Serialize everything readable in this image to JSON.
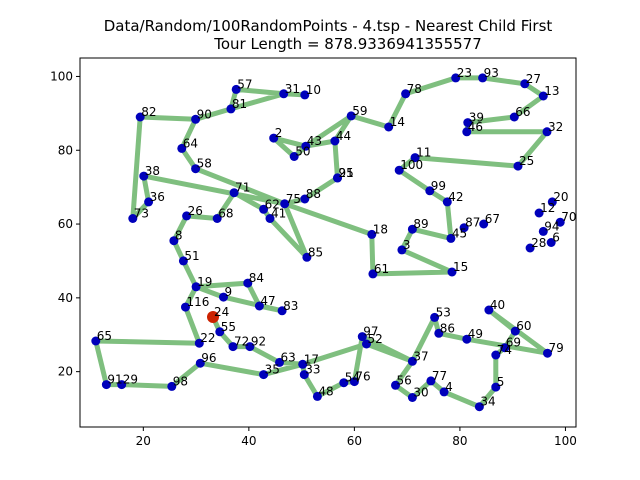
{
  "chart_data": {
    "type": "scatter",
    "title_line1": "Data/Random/100RandomPoints - 4.tsp - Nearest Child First",
    "title_line2": "Tour Length = 878.9336941355577",
    "xlim": [
      8,
      102
    ],
    "ylim": [
      5,
      105
    ],
    "xticks": [
      20,
      40,
      60,
      80,
      100
    ],
    "yticks": [
      20,
      40,
      60,
      80,
      100
    ],
    "grid": false,
    "colors": {
      "route": "#7fbf7f",
      "point": "#0000bb",
      "start": "#cc2200"
    },
    "start_point": {
      "x": 33.2,
      "y": 34.8
    },
    "points": [
      {
        "id": "57",
        "x": 37.6,
        "y": 96.5
      },
      {
        "id": "31",
        "x": 46.6,
        "y": 95.3
      },
      {
        "id": "10",
        "x": 50.6,
        "y": 95.0
      },
      {
        "id": "81",
        "x": 36.6,
        "y": 91.2
      },
      {
        "id": "90",
        "x": 29.9,
        "y": 88.4
      },
      {
        "id": "82",
        "x": 19.4,
        "y": 89.0
      },
      {
        "id": "64",
        "x": 27.3,
        "y": 80.5
      },
      {
        "id": "58",
        "x": 29.9,
        "y": 75.0
      },
      {
        "id": "38",
        "x": 20.1,
        "y": 73.0
      },
      {
        "id": "36",
        "x": 21.0,
        "y": 66.0
      },
      {
        "id": "73",
        "x": 18.0,
        "y": 61.5
      },
      {
        "id": "26",
        "x": 28.2,
        "y": 62.2
      },
      {
        "id": "68",
        "x": 34.0,
        "y": 61.5
      },
      {
        "id": "71",
        "x": 37.2,
        "y": 68.5
      },
      {
        "id": "62",
        "x": 42.8,
        "y": 64.0
      },
      {
        "id": "41",
        "x": 44.0,
        "y": 61.5
      },
      {
        "id": "75",
        "x": 46.8,
        "y": 65.5
      },
      {
        "id": "88",
        "x": 50.6,
        "y": 66.8
      },
      {
        "id": "85",
        "x": 51.0,
        "y": 51.0
      },
      {
        "id": "8",
        "x": 25.8,
        "y": 55.5
      },
      {
        "id": "51",
        "x": 27.6,
        "y": 50.0
      },
      {
        "id": "19",
        "x": 30.0,
        "y": 43.0
      },
      {
        "id": "84",
        "x": 39.8,
        "y": 44.0
      },
      {
        "id": "9",
        "x": 35.2,
        "y": 40.2
      },
      {
        "id": "116",
        "x": 28.0,
        "y": 37.5
      },
      {
        "id": "47",
        "x": 42.0,
        "y": 37.8
      },
      {
        "id": "83",
        "x": 46.3,
        "y": 36.5
      },
      {
        "id": "55",
        "x": 34.5,
        "y": 30.8
      },
      {
        "id": "22",
        "x": 30.6,
        "y": 27.7
      },
      {
        "id": "72",
        "x": 37.0,
        "y": 26.8
      },
      {
        "id": "92",
        "x": 40.2,
        "y": 26.8
      },
      {
        "id": "65",
        "x": 11.0,
        "y": 28.3
      },
      {
        "id": "91",
        "x": 13.0,
        "y": 16.5
      },
      {
        "id": "29",
        "x": 15.9,
        "y": 16.5
      },
      {
        "id": "98",
        "x": 25.4,
        "y": 16.0
      },
      {
        "id": "96",
        "x": 30.8,
        "y": 22.3
      },
      {
        "id": "35",
        "x": 42.8,
        "y": 19.2
      },
      {
        "id": "63",
        "x": 45.8,
        "y": 22.5
      },
      {
        "id": "17",
        "x": 50.2,
        "y": 22.0
      },
      {
        "id": "33",
        "x": 50.5,
        "y": 19.2
      },
      {
        "id": "48",
        "x": 53.0,
        "y": 13.3
      },
      {
        "id": "54",
        "x": 58.0,
        "y": 17.0
      },
      {
        "id": "76",
        "x": 60.0,
        "y": 17.3
      },
      {
        "id": "97",
        "x": 61.5,
        "y": 29.5
      },
      {
        "id": "52",
        "x": 62.3,
        "y": 27.5
      },
      {
        "id": "37",
        "x": 71.0,
        "y": 22.8
      },
      {
        "id": "56",
        "x": 67.8,
        "y": 16.3
      },
      {
        "id": "30",
        "x": 71.0,
        "y": 13.0
      },
      {
        "id": "77",
        "x": 74.5,
        "y": 17.5
      },
      {
        "id": "4",
        "x": 77.0,
        "y": 14.5
      },
      {
        "id": "34",
        "x": 83.7,
        "y": 10.5
      },
      {
        "id": "5",
        "x": 86.8,
        "y": 15.8
      },
      {
        "id": "74",
        "x": 86.8,
        "y": 24.5
      },
      {
        "id": "69",
        "x": 88.5,
        "y": 26.5
      },
      {
        "id": "60",
        "x": 90.5,
        "y": 31.0
      },
      {
        "id": "40",
        "x": 85.5,
        "y": 36.7
      },
      {
        "id": "79",
        "x": 96.6,
        "y": 25.0
      },
      {
        "id": "49",
        "x": 81.3,
        "y": 28.8
      },
      {
        "id": "86",
        "x": 76.0,
        "y": 30.4
      },
      {
        "id": "53",
        "x": 75.2,
        "y": 34.7
      },
      {
        "id": "61",
        "x": 63.5,
        "y": 46.5
      },
      {
        "id": "15",
        "x": 78.5,
        "y": 47.0
      },
      {
        "id": "3",
        "x": 69.0,
        "y": 53.0
      },
      {
        "id": "18",
        "x": 63.3,
        "y": 57.2
      },
      {
        "id": "89",
        "x": 71.0,
        "y": 58.6
      },
      {
        "id": "45",
        "x": 78.3,
        "y": 56.1
      },
      {
        "id": "87",
        "x": 80.8,
        "y": 59.0
      },
      {
        "id": "67",
        "x": 84.5,
        "y": 60.0
      },
      {
        "id": "42",
        "x": 77.6,
        "y": 66.0
      },
      {
        "id": "99",
        "x": 74.3,
        "y": 69.0
      },
      {
        "id": "12",
        "x": 95.0,
        "y": 63.0
      },
      {
        "id": "20",
        "x": 97.5,
        "y": 66.0
      },
      {
        "id": "70",
        "x": 99.0,
        "y": 60.5
      },
      {
        "id": "94",
        "x": 95.8,
        "y": 58.0
      },
      {
        "id": "28",
        "x": 93.3,
        "y": 53.5
      },
      {
        "id": "6",
        "x": 97.3,
        "y": 55.0
      },
      {
        "id": "100",
        "x": 68.5,
        "y": 74.6
      },
      {
        "id": "11",
        "x": 71.5,
        "y": 78.0
      },
      {
        "id": "25",
        "x": 91.0,
        "y": 75.7
      },
      {
        "id": "32",
        "x": 96.5,
        "y": 85.0
      },
      {
        "id": "46",
        "x": 81.3,
        "y": 85.0
      },
      {
        "id": "39",
        "x": 81.5,
        "y": 87.5
      },
      {
        "id": "66",
        "x": 90.3,
        "y": 89.0
      },
      {
        "id": "13",
        "x": 95.8,
        "y": 94.7
      },
      {
        "id": "27",
        "x": 92.3,
        "y": 98.0
      },
      {
        "id": "93",
        "x": 84.3,
        "y": 99.6
      },
      {
        "id": "23",
        "x": 79.2,
        "y": 99.6
      },
      {
        "id": "78",
        "x": 69.7,
        "y": 95.3
      },
      {
        "id": "14",
        "x": 66.5,
        "y": 86.3
      },
      {
        "id": "59",
        "x": 59.4,
        "y": 89.3
      },
      {
        "id": "2",
        "x": 44.7,
        "y": 83.3
      },
      {
        "id": "43",
        "x": 50.8,
        "y": 81.1
      },
      {
        "id": "50",
        "x": 48.6,
        "y": 78.3
      },
      {
        "id": "44",
        "x": 56.3,
        "y": 82.5
      },
      {
        "id": "95",
        "x": 56.8,
        "y": 72.5
      },
      {
        "id": "21",
        "x": 56.8,
        "y": 72.5
      },
      {
        "id": "24",
        "x": 33.2,
        "y": 34.8
      }
    ],
    "route_order": [
      "24",
      "55",
      "72",
      "92",
      "63",
      "17",
      "33",
      "48",
      "54",
      "76",
      "97",
      "52",
      "37",
      "56",
      "30",
      "77",
      "4",
      "34",
      "5",
      "74",
      "69",
      "60",
      "40",
      "79",
      "49",
      "86",
      "53",
      "53",
      "37",
      "97",
      "52",
      "17",
      "35",
      "96",
      "98",
      "29",
      "91",
      "65",
      "22",
      "116",
      "19",
      "84",
      "47",
      "83",
      "9",
      "19",
      "51",
      "8",
      "26",
      "68",
      "71",
      "62",
      "41",
      "85",
      "75",
      "88",
      "95",
      "44",
      "43",
      "50",
      "2",
      "43",
      "59",
      "14",
      "78",
      "23",
      "93",
      "27",
      "13",
      "66",
      "39",
      "46",
      "32",
      "25",
      "11",
      "100",
      "99",
      "42",
      "45",
      "89",
      "3",
      "15",
      "61",
      "18",
      "75",
      "38",
      "36",
      "73",
      "82",
      "90",
      "81",
      "57",
      "31",
      "10",
      "31",
      "81",
      "90",
      "64",
      "58",
      "75",
      "88",
      "21",
      "95",
      "44",
      "59"
    ],
    "route_closed": false
  }
}
